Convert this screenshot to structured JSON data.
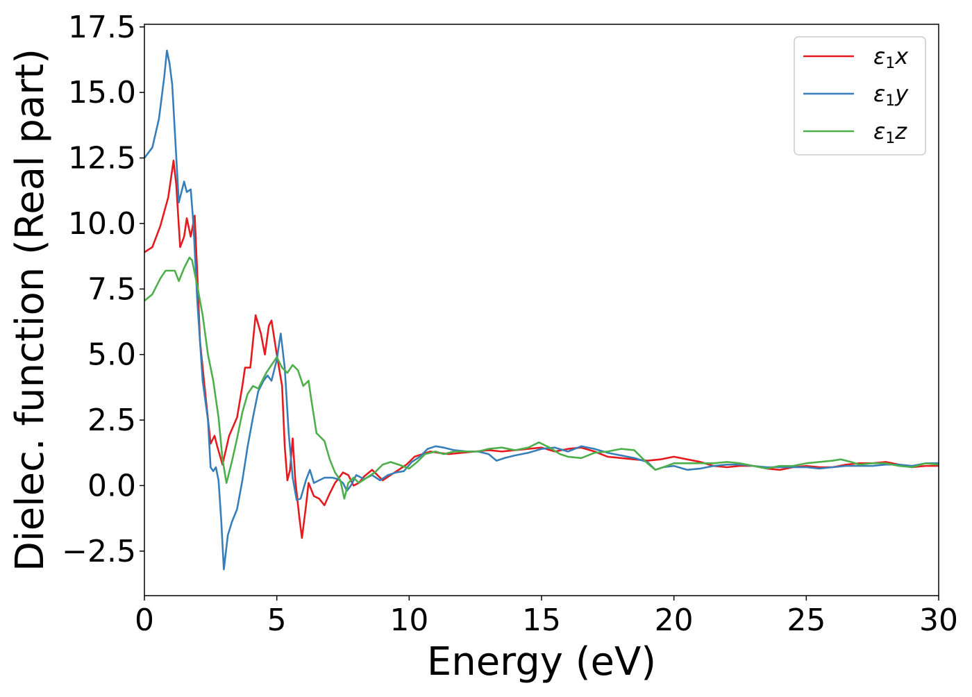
{
  "chart_data": {
    "type": "line",
    "xlabel": "Energy (eV)",
    "ylabel": "Dielec. function (Real part)",
    "xlim": [
      0,
      30
    ],
    "ylim": [
      -4.2,
      17.6
    ],
    "xticks": [
      0,
      5,
      10,
      15,
      20,
      25,
      30
    ],
    "xtick_labels": [
      "0",
      "5",
      "10",
      "15",
      "20",
      "25",
      "30"
    ],
    "yticks": [
      -2.5,
      0.0,
      2.5,
      5.0,
      7.5,
      10.0,
      12.5,
      15.0,
      17.5
    ],
    "ytick_labels": [
      "−2.5",
      "0.0",
      "2.5",
      "5.0",
      "7.5",
      "10.0",
      "12.5",
      "15.0",
      "17.5"
    ],
    "grid": false,
    "legend_position": "top-right",
    "series": [
      {
        "name": "ε₁x",
        "legend_base": "ε",
        "legend_sub": "1",
        "legend_var": "x",
        "color": "#e41a1c",
        "points": [
          [
            0,
            8.9
          ],
          [
            0.3,
            9.1
          ],
          [
            0.6,
            9.9
          ],
          [
            0.9,
            11.0
          ],
          [
            1.1,
            12.4
          ],
          [
            1.2,
            11.5
          ],
          [
            1.35,
            9.1
          ],
          [
            1.5,
            9.5
          ],
          [
            1.6,
            10.2
          ],
          [
            1.75,
            9.5
          ],
          [
            1.9,
            10.3
          ],
          [
            2.0,
            8.0
          ],
          [
            2.1,
            5.5
          ],
          [
            2.3,
            3.5
          ],
          [
            2.5,
            1.6
          ],
          [
            2.65,
            1.9
          ],
          [
            2.75,
            1.5
          ],
          [
            2.95,
            0.8
          ],
          [
            3.2,
            1.9
          ],
          [
            3.5,
            2.6
          ],
          [
            3.7,
            3.8
          ],
          [
            3.8,
            4.5
          ],
          [
            4.0,
            4.5
          ],
          [
            4.2,
            6.5
          ],
          [
            4.4,
            5.8
          ],
          [
            4.55,
            5.0
          ],
          [
            4.7,
            6.1
          ],
          [
            4.8,
            6.3
          ],
          [
            5.0,
            5.0
          ],
          [
            5.2,
            3.8
          ],
          [
            5.3,
            1.5
          ],
          [
            5.4,
            0.2
          ],
          [
            5.5,
            0.6
          ],
          [
            5.6,
            1.8
          ],
          [
            5.7,
            0.2
          ],
          [
            5.85,
            -1.2
          ],
          [
            5.95,
            -2.0
          ],
          [
            6.1,
            -0.8
          ],
          [
            6.2,
            0.1
          ],
          [
            6.4,
            -0.4
          ],
          [
            6.6,
            -0.5
          ],
          [
            6.8,
            -0.75
          ],
          [
            7.0,
            -0.3
          ],
          [
            7.2,
            0.1
          ],
          [
            7.5,
            0.5
          ],
          [
            7.7,
            0.4
          ],
          [
            7.9,
            0.0
          ],
          [
            8.1,
            0.1
          ],
          [
            8.3,
            0.35
          ],
          [
            8.6,
            0.6
          ],
          [
            8.8,
            0.4
          ],
          [
            9.0,
            0.2
          ],
          [
            9.3,
            0.4
          ],
          [
            9.6,
            0.6
          ],
          [
            9.9,
            0.8
          ],
          [
            10.2,
            1.1
          ],
          [
            10.5,
            1.2
          ],
          [
            10.8,
            1.3
          ],
          [
            11.1,
            1.25
          ],
          [
            11.5,
            1.2
          ],
          [
            12.0,
            1.25
          ],
          [
            12.5,
            1.3
          ],
          [
            13.0,
            1.35
          ],
          [
            13.5,
            1.3
          ],
          [
            14.0,
            1.35
          ],
          [
            14.5,
            1.4
          ],
          [
            15.0,
            1.45
          ],
          [
            15.5,
            1.3
          ],
          [
            16.0,
            1.4
          ],
          [
            16.5,
            1.45
          ],
          [
            17.0,
            1.3
          ],
          [
            17.5,
            1.1
          ],
          [
            18.0,
            1.05
          ],
          [
            18.5,
            1.0
          ],
          [
            19.0,
            0.95
          ],
          [
            19.5,
            1.0
          ],
          [
            20.0,
            1.1
          ],
          [
            20.5,
            1.0
          ],
          [
            21.0,
            0.9
          ],
          [
            21.5,
            0.75
          ],
          [
            22.0,
            0.7
          ],
          [
            22.5,
            0.75
          ],
          [
            23.0,
            0.75
          ],
          [
            23.5,
            0.65
          ],
          [
            24.0,
            0.6
          ],
          [
            24.5,
            0.7
          ],
          [
            25.0,
            0.75
          ],
          [
            25.5,
            0.7
          ],
          [
            26.0,
            0.7
          ],
          [
            26.5,
            0.8
          ],
          [
            27.0,
            0.85
          ],
          [
            27.5,
            0.85
          ],
          [
            28.0,
            0.9
          ],
          [
            28.5,
            0.8
          ],
          [
            29.0,
            0.7
          ],
          [
            29.5,
            0.75
          ],
          [
            30.0,
            0.75
          ]
        ]
      },
      {
        "name": "ε₁y",
        "legend_base": "ε",
        "legend_sub": "1",
        "legend_var": "y",
        "color": "#377eb8",
        "points": [
          [
            0,
            12.5
          ],
          [
            0.3,
            12.9
          ],
          [
            0.55,
            14.0
          ],
          [
            0.75,
            15.6
          ],
          [
            0.85,
            16.6
          ],
          [
            0.95,
            16.1
          ],
          [
            1.05,
            15.3
          ],
          [
            1.15,
            13.5
          ],
          [
            1.3,
            10.8
          ],
          [
            1.4,
            11.2
          ],
          [
            1.5,
            11.6
          ],
          [
            1.6,
            11.2
          ],
          [
            1.75,
            11.3
          ],
          [
            1.85,
            10.0
          ],
          [
            2.0,
            7.0
          ],
          [
            2.2,
            4.0
          ],
          [
            2.4,
            2.5
          ],
          [
            2.5,
            0.7
          ],
          [
            2.6,
            0.55
          ],
          [
            2.7,
            0.7
          ],
          [
            2.8,
            0.2
          ],
          [
            2.9,
            -1.3
          ],
          [
            3.0,
            -3.2
          ],
          [
            3.15,
            -1.9
          ],
          [
            3.3,
            -1.4
          ],
          [
            3.5,
            -0.9
          ],
          [
            3.7,
            0.2
          ],
          [
            3.9,
            1.5
          ],
          [
            4.1,
            2.6
          ],
          [
            4.3,
            3.6
          ],
          [
            4.5,
            4.0
          ],
          [
            4.65,
            4.2
          ],
          [
            4.8,
            4.0
          ],
          [
            5.0,
            4.8
          ],
          [
            5.1,
            5.5
          ],
          [
            5.15,
            5.8
          ],
          [
            5.3,
            4.5
          ],
          [
            5.45,
            2.0
          ],
          [
            5.6,
            0.3
          ],
          [
            5.75,
            -0.55
          ],
          [
            5.9,
            -0.5
          ],
          [
            6.1,
            0.2
          ],
          [
            6.25,
            0.6
          ],
          [
            6.4,
            0.1
          ],
          [
            6.6,
            0.2
          ],
          [
            6.8,
            0.3
          ],
          [
            7.1,
            0.3
          ],
          [
            7.3,
            0.25
          ],
          [
            7.5,
            0.1
          ],
          [
            7.65,
            -0.2
          ],
          [
            7.8,
            0.0
          ],
          [
            8.0,
            0.4
          ],
          [
            8.3,
            0.25
          ],
          [
            8.6,
            0.4
          ],
          [
            8.9,
            0.2
          ],
          [
            9.2,
            0.4
          ],
          [
            9.5,
            0.5
          ],
          [
            9.8,
            0.55
          ],
          [
            10.1,
            0.9
          ],
          [
            10.4,
            1.1
          ],
          [
            10.7,
            1.4
          ],
          [
            11.0,
            1.5
          ],
          [
            11.3,
            1.45
          ],
          [
            11.7,
            1.35
          ],
          [
            12.2,
            1.3
          ],
          [
            12.6,
            1.3
          ],
          [
            13.0,
            1.2
          ],
          [
            13.3,
            0.95
          ],
          [
            13.6,
            1.05
          ],
          [
            14.0,
            1.15
          ],
          [
            14.5,
            1.25
          ],
          [
            15.0,
            1.4
          ],
          [
            15.5,
            1.45
          ],
          [
            16.0,
            1.3
          ],
          [
            16.5,
            1.5
          ],
          [
            17.0,
            1.4
          ],
          [
            17.5,
            1.25
          ],
          [
            18.0,
            1.15
          ],
          [
            18.5,
            1.05
          ],
          [
            19.0,
            0.9
          ],
          [
            19.3,
            0.6
          ],
          [
            19.6,
            0.7
          ],
          [
            20.0,
            0.75
          ],
          [
            20.5,
            0.6
          ],
          [
            21.0,
            0.65
          ],
          [
            21.5,
            0.75
          ],
          [
            22.0,
            0.8
          ],
          [
            22.5,
            0.8
          ],
          [
            23.0,
            0.75
          ],
          [
            23.5,
            0.7
          ],
          [
            24.0,
            0.7
          ],
          [
            24.5,
            0.7
          ],
          [
            25.0,
            0.7
          ],
          [
            25.5,
            0.65
          ],
          [
            26.0,
            0.7
          ],
          [
            26.5,
            0.75
          ],
          [
            27.0,
            0.75
          ],
          [
            27.5,
            0.75
          ],
          [
            28.0,
            0.8
          ],
          [
            28.5,
            0.8
          ],
          [
            29.0,
            0.75
          ],
          [
            29.5,
            0.85
          ],
          [
            30.0,
            0.85
          ]
        ]
      },
      {
        "name": "ε₁z",
        "legend_base": "ε",
        "legend_sub": "1",
        "legend_var": "z",
        "color": "#4daf4a",
        "points": [
          [
            0,
            7.05
          ],
          [
            0.3,
            7.3
          ],
          [
            0.6,
            7.9
          ],
          [
            0.8,
            8.2
          ],
          [
            1.0,
            8.2
          ],
          [
            1.15,
            8.2
          ],
          [
            1.3,
            7.8
          ],
          [
            1.5,
            8.3
          ],
          [
            1.7,
            8.7
          ],
          [
            1.8,
            8.6
          ],
          [
            2.0,
            7.6
          ],
          [
            2.2,
            6.5
          ],
          [
            2.4,
            5.0
          ],
          [
            2.6,
            4.0
          ],
          [
            2.8,
            2.6
          ],
          [
            2.95,
            1.0
          ],
          [
            3.1,
            0.1
          ],
          [
            3.3,
            0.9
          ],
          [
            3.5,
            1.8
          ],
          [
            3.7,
            2.8
          ],
          [
            3.9,
            3.5
          ],
          [
            4.1,
            3.8
          ],
          [
            4.3,
            3.7
          ],
          [
            4.6,
            4.3
          ],
          [
            4.8,
            4.6
          ],
          [
            5.0,
            4.9
          ],
          [
            5.2,
            4.5
          ],
          [
            5.4,
            4.3
          ],
          [
            5.6,
            4.6
          ],
          [
            5.8,
            4.4
          ],
          [
            6.0,
            3.8
          ],
          [
            6.2,
            4.0
          ],
          [
            6.3,
            3.3
          ],
          [
            6.5,
            2.0
          ],
          [
            6.8,
            1.7
          ],
          [
            7.0,
            1.0
          ],
          [
            7.2,
            0.5
          ],
          [
            7.4,
            0.2
          ],
          [
            7.55,
            -0.5
          ],
          [
            7.7,
            0.1
          ],
          [
            7.9,
            0.3
          ],
          [
            8.1,
            0.1
          ],
          [
            8.4,
            0.3
          ],
          [
            8.7,
            0.5
          ],
          [
            9.0,
            0.8
          ],
          [
            9.3,
            0.9
          ],
          [
            9.6,
            0.8
          ],
          [
            10.0,
            0.65
          ],
          [
            10.3,
            0.9
          ],
          [
            10.6,
            1.2
          ],
          [
            11.0,
            1.3
          ],
          [
            11.3,
            1.2
          ],
          [
            11.7,
            1.3
          ],
          [
            12.2,
            1.3
          ],
          [
            12.6,
            1.3
          ],
          [
            13.0,
            1.4
          ],
          [
            13.5,
            1.45
          ],
          [
            14.0,
            1.35
          ],
          [
            14.5,
            1.45
          ],
          [
            14.9,
            1.65
          ],
          [
            15.3,
            1.45
          ],
          [
            15.7,
            1.2
          ],
          [
            16.0,
            1.1
          ],
          [
            16.5,
            1.05
          ],
          [
            17.0,
            1.25
          ],
          [
            17.5,
            1.3
          ],
          [
            18.0,
            1.4
          ],
          [
            18.5,
            1.35
          ],
          [
            19.0,
            0.85
          ],
          [
            19.3,
            0.6
          ],
          [
            19.6,
            0.7
          ],
          [
            20.0,
            0.85
          ],
          [
            20.5,
            0.85
          ],
          [
            21.0,
            0.85
          ],
          [
            21.5,
            0.85
          ],
          [
            22.0,
            0.9
          ],
          [
            22.5,
            0.85
          ],
          [
            23.0,
            0.75
          ],
          [
            23.5,
            0.65
          ],
          [
            24.0,
            0.75
          ],
          [
            24.5,
            0.75
          ],
          [
            25.0,
            0.85
          ],
          [
            25.5,
            0.9
          ],
          [
            26.0,
            0.95
          ],
          [
            26.3,
            1.0
          ],
          [
            26.7,
            0.9
          ],
          [
            27.0,
            0.8
          ],
          [
            27.5,
            0.85
          ],
          [
            28.0,
            0.85
          ],
          [
            28.5,
            0.75
          ],
          [
            29.0,
            0.7
          ],
          [
            29.5,
            0.85
          ],
          [
            30.0,
            0.8
          ]
        ]
      }
    ]
  }
}
